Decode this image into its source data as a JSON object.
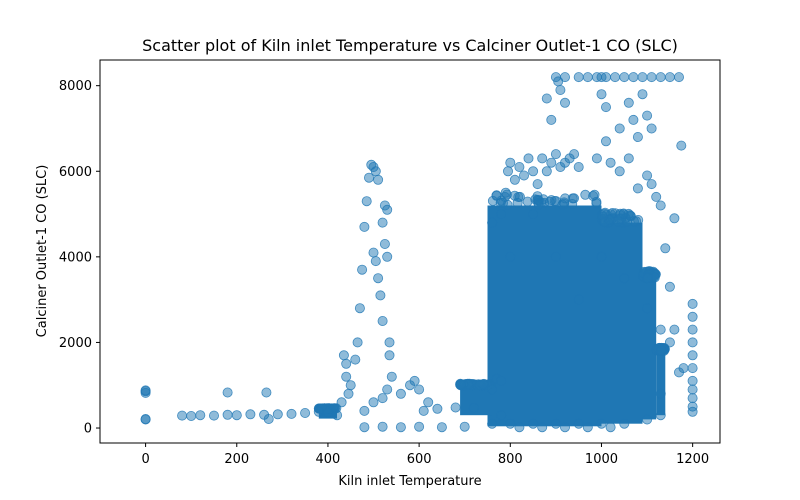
{
  "chart_data": {
    "type": "scatter",
    "title": "Scatter plot of Kiln inlet Temperature vs Calciner Outlet-1 CO (SLC)",
    "xlabel": "Kiln inlet Temperature",
    "ylabel": "Calciner Outlet-1 CO (SLC)",
    "xlim": [
      -100,
      1260
    ],
    "ylim": [
      -350,
      8600
    ],
    "xticks": [
      0,
      200,
      400,
      600,
      800,
      1000,
      1200
    ],
    "yticks": [
      0,
      2000,
      4000,
      6000,
      8000
    ],
    "grid": false,
    "legend": "none",
    "marker_color": "#1f77b4",
    "marker_alpha": 0.5,
    "series": [
      {
        "points": [
          [
            0,
            820
          ],
          [
            0,
            860
          ],
          [
            0,
            880
          ],
          [
            0,
            200
          ],
          [
            0,
            210
          ],
          [
            80,
            290
          ],
          [
            100,
            280
          ],
          [
            120,
            300
          ],
          [
            150,
            290
          ],
          [
            180,
            310
          ],
          [
            200,
            300
          ],
          [
            230,
            320
          ],
          [
            260,
            310
          ],
          [
            290,
            320
          ],
          [
            320,
            330
          ],
          [
            350,
            350
          ],
          [
            380,
            380
          ],
          [
            400,
            360
          ],
          [
            180,
            830
          ],
          [
            265,
            830
          ],
          [
            270,
            210
          ],
          [
            420,
            300
          ],
          [
            430,
            600
          ],
          [
            440,
            1200
          ],
          [
            435,
            1700
          ],
          [
            440,
            1500
          ],
          [
            450,
            1000
          ],
          [
            445,
            800
          ],
          [
            460,
            1600
          ],
          [
            465,
            2000
          ],
          [
            470,
            2800
          ],
          [
            475,
            3700
          ],
          [
            480,
            4700
          ],
          [
            485,
            5300
          ],
          [
            490,
            5850
          ],
          [
            495,
            6150
          ],
          [
            500,
            6100
          ],
          [
            505,
            6000
          ],
          [
            510,
            5800
          ],
          [
            500,
            4100
          ],
          [
            505,
            3900
          ],
          [
            510,
            3500
          ],
          [
            515,
            3100
          ],
          [
            520,
            2500
          ],
          [
            520,
            4800
          ],
          [
            525,
            4300
          ],
          [
            530,
            5100
          ],
          [
            525,
            5200
          ],
          [
            530,
            4000
          ],
          [
            535,
            2000
          ],
          [
            535,
            1700
          ],
          [
            540,
            1200
          ],
          [
            530,
            900
          ],
          [
            520,
            700
          ],
          [
            500,
            600
          ],
          [
            480,
            400
          ],
          [
            480,
            20
          ],
          [
            520,
            30
          ],
          [
            560,
            20
          ],
          [
            600,
            30
          ],
          [
            650,
            20
          ],
          [
            700,
            30
          ],
          [
            560,
            800
          ],
          [
            580,
            1000
          ],
          [
            590,
            1100
          ],
          [
            600,
            900
          ],
          [
            620,
            600
          ],
          [
            610,
            400
          ],
          [
            640,
            450
          ],
          [
            680,
            480
          ],
          [
            720,
            470
          ],
          [
            760,
            900
          ],
          [
            770,
            1150
          ],
          [
            780,
            1100
          ],
          [
            780,
            300
          ],
          [
            780,
            5000
          ],
          [
            790,
            5500
          ],
          [
            795,
            6000
          ],
          [
            800,
            6200
          ],
          [
            810,
            5800
          ],
          [
            820,
            6100
          ],
          [
            830,
            5900
          ],
          [
            840,
            6300
          ],
          [
            850,
            6000
          ],
          [
            860,
            5700
          ],
          [
            870,
            6300
          ],
          [
            880,
            6000
          ],
          [
            890,
            6200
          ],
          [
            900,
            6400
          ],
          [
            910,
            6100
          ],
          [
            920,
            6200
          ],
          [
            930,
            6300
          ],
          [
            940,
            6400
          ],
          [
            950,
            6100
          ],
          [
            880,
            7700
          ],
          [
            890,
            7200
          ],
          [
            900,
            8200
          ],
          [
            905,
            8100
          ],
          [
            910,
            7900
          ],
          [
            920,
            8200
          ],
          [
            950,
            8200
          ],
          [
            970,
            8200
          ],
          [
            990,
            8200
          ],
          [
            1000,
            8200
          ],
          [
            1010,
            8200
          ],
          [
            1030,
            8200
          ],
          [
            1050,
            8200
          ],
          [
            1070,
            8200
          ],
          [
            1090,
            8200
          ],
          [
            1110,
            8200
          ],
          [
            1130,
            8200
          ],
          [
            1150,
            8200
          ],
          [
            1170,
            8200
          ],
          [
            920,
            7600
          ],
          [
            1000,
            7800
          ],
          [
            1010,
            7500
          ],
          [
            1040,
            7000
          ],
          [
            1060,
            7600
          ],
          [
            1070,
            7200
          ],
          [
            1080,
            6800
          ],
          [
            1090,
            7800
          ],
          [
            1100,
            7300
          ],
          [
            1110,
            7000
          ],
          [
            990,
            6300
          ],
          [
            1010,
            6700
          ],
          [
            1020,
            6200
          ],
          [
            1040,
            6000
          ],
          [
            1060,
            6300
          ],
          [
            1080,
            5600
          ],
          [
            1100,
            5900
          ],
          [
            1110,
            5700
          ],
          [
            1120,
            5400
          ],
          [
            1130,
            5200
          ],
          [
            1140,
            4200
          ],
          [
            1150,
            3300
          ],
          [
            1160,
            4900
          ],
          [
            1175,
            6600
          ],
          [
            1130,
            2300
          ],
          [
            1150,
            2000
          ],
          [
            1160,
            2300
          ],
          [
            1170,
            1300
          ],
          [
            1180,
            1400
          ],
          [
            1200,
            2900
          ],
          [
            1200,
            2600
          ],
          [
            1200,
            2300
          ],
          [
            1200,
            2000
          ],
          [
            1200,
            1700
          ],
          [
            1200,
            1400
          ],
          [
            1200,
            1100
          ],
          [
            1200,
            900
          ],
          [
            1200,
            700
          ],
          [
            1200,
            500
          ],
          [
            1200,
            380
          ],
          [
            760,
            4800
          ],
          [
            760,
            100
          ],
          [
            800,
            4000
          ],
          [
            800,
            100
          ],
          [
            850,
            5000
          ],
          [
            850,
            100
          ],
          [
            900,
            4000
          ],
          [
            900,
            100
          ],
          [
            950,
            3000
          ],
          [
            950,
            100
          ],
          [
            1000,
            4000
          ],
          [
            1000,
            100
          ],
          [
            1050,
            3500
          ],
          [
            1050,
            100
          ],
          [
            1100,
            2800
          ],
          [
            1100,
            200
          ],
          [
            1130,
            800
          ],
          [
            1130,
            300
          ],
          [
            820,
            20
          ],
          [
            870,
            20
          ],
          [
            920,
            20
          ],
          [
            970,
            20
          ],
          [
            1020,
            20
          ]
        ],
        "dense_regions": [
          {
            "x": [
              750,
              1000
            ],
            "y": [
              40,
              5200
            ]
          },
          {
            "x": [
              1000,
              1090
            ],
            "y": [
              100,
              4800
            ]
          },
          {
            "x": [
              1090,
              1120
            ],
            "y": [
              200,
              3500
            ]
          },
          {
            "x": [
              1120,
              1140
            ],
            "y": [
              300,
              1800
            ]
          },
          {
            "x": [
              380,
              420
            ],
            "y": [
              220,
              450
            ]
          },
          {
            "x": [
              690,
              760
            ],
            "y": [
              300,
              1000
            ]
          }
        ]
      }
    ]
  }
}
